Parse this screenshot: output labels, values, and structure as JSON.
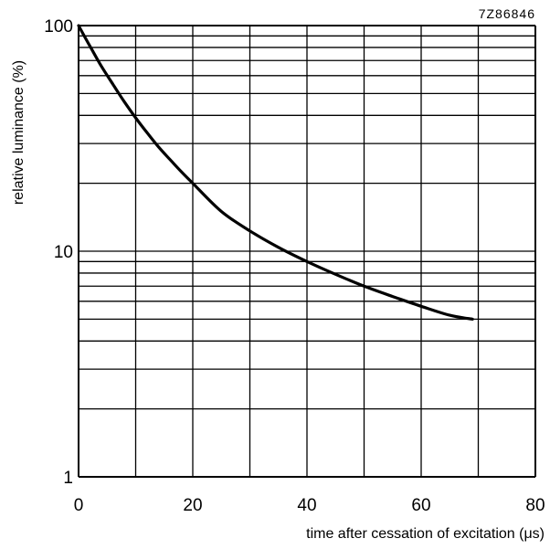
{
  "figure_code": "7Z86846",
  "chart_data": {
    "type": "line",
    "title": "",
    "xlabel": "time after cessation of excitation (μs)",
    "ylabel": "relative luminance (%)",
    "xlim": [
      0,
      80
    ],
    "ylim": [
      1,
      100
    ],
    "yscale": "log",
    "grid": true,
    "x_ticks": [
      0,
      20,
      40,
      60,
      80
    ],
    "x_tick_labels": [
      "0",
      "20",
      "40",
      "60",
      "80"
    ],
    "y_ticks": [
      1,
      10,
      100
    ],
    "y_tick_labels": [
      "1",
      "10",
      "100"
    ],
    "series": [
      {
        "x": [
          0,
          2,
          4,
          6,
          8,
          10,
          12,
          14,
          16,
          18,
          20,
          25,
          30,
          35,
          40,
          45,
          50,
          55,
          60,
          65,
          69
        ],
        "values": [
          100,
          81,
          66,
          55,
          46,
          39,
          33.5,
          29,
          25.5,
          22.5,
          20,
          15,
          12.3,
          10.4,
          9.0,
          7.9,
          7.0,
          6.3,
          5.7,
          5.2,
          5.0
        ],
        "color": "#000000"
      }
    ]
  }
}
